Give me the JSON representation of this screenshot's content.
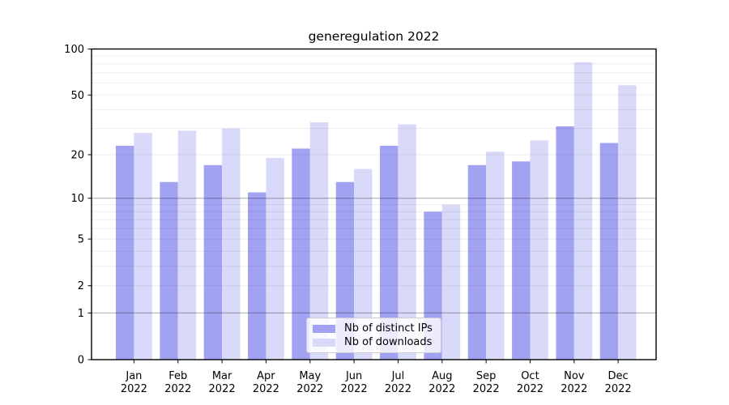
{
  "chart_data": {
    "type": "bar",
    "title": "generegulation 2022",
    "categories": [
      "Jan 2022",
      "Feb 2022",
      "Mar 2022",
      "Apr 2022",
      "May 2022",
      "Jun 2022",
      "Jul 2022",
      "Aug 2022",
      "Sep 2022",
      "Oct 2022",
      "Nov 2022",
      "Dec 2022"
    ],
    "series": [
      {
        "name": "Nb of distinct IPs",
        "color": "#a2a2f3",
        "values": [
          23,
          13,
          17,
          11,
          22,
          13,
          23,
          8,
          17,
          18,
          31,
          24
        ]
      },
      {
        "name": "Nb of downloads",
        "color": "#d9d9f9",
        "values": [
          28,
          29,
          30,
          19,
          33,
          16,
          32,
          9,
          21,
          25,
          82,
          58
        ]
      }
    ],
    "xlabel": "",
    "ylabel": "",
    "yscale": "log1p",
    "ylim": [
      0,
      100
    ],
    "yticks": [
      0,
      1,
      2,
      5,
      10,
      20,
      50,
      100
    ],
    "major_gridlines": [
      1,
      10
    ],
    "minor_gridlines": [
      2,
      3,
      4,
      5,
      6,
      7,
      8,
      9,
      20,
      30,
      40,
      50,
      60,
      70,
      80,
      90
    ],
    "grid": "horizontal",
    "legend_position": "lower center",
    "colors": {
      "spine": "#000000",
      "major_grid": "rgba(0,0,0,0.28)",
      "minor_grid": "rgba(0,0,0,0.07)",
      "tick_text": "#000000"
    }
  }
}
